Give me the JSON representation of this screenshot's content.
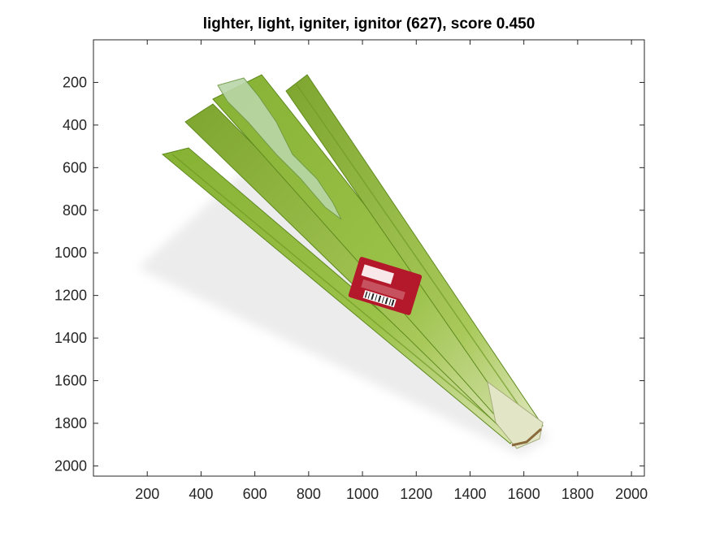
{
  "figure": {
    "title": "lighter, light, igniter, ignitor (627), score 0.450",
    "image_subject": "celery",
    "colors": {
      "background": "#ffffff",
      "axis": "#262626",
      "celery_dark": "#6f9a25",
      "celery_mid": "#8db83a",
      "celery_light": "#b7d36b",
      "label_red": "#b3192a"
    }
  },
  "axes": {
    "x_ticks": [
      "200",
      "400",
      "600",
      "800",
      "1000",
      "1200",
      "1400",
      "1600",
      "1800",
      "2000"
    ],
    "y_ticks": [
      "200",
      "400",
      "600",
      "800",
      "1000",
      "1200",
      "1400",
      "1600",
      "1800",
      "2000"
    ],
    "x_range": [
      0,
      2048
    ],
    "y_range": [
      0,
      2048
    ],
    "y_direction": "reversed",
    "grid": false
  }
}
